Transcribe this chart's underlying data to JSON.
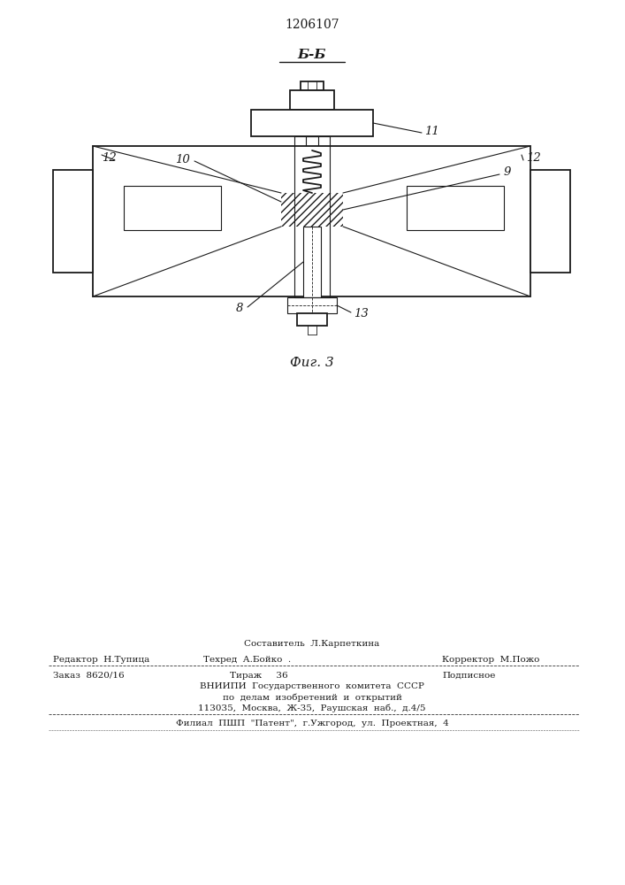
{
  "patent_number": "1206107",
  "section_label": "Б-Б",
  "fig_label": "Фиг. 3",
  "bg_color": "#ffffff",
  "line_color": "#1a1a1a",
  "footer": {
    "row0": "Составитель  Л.Карпеткина",
    "row1_left": "Редактор  Н.Тупица",
    "row1_mid": "Техред  А.Бойко  .",
    "row1_right": "Корректор  М.Пожо",
    "row2_left": "Заказ  8620/16",
    "row2_mid": "Тираж     36",
    "row2_right": "Подписное",
    "row3": "ВНИИПИ  Государственного  комитета  СССР",
    "row4": "по  делам  изобретений  и  открытий",
    "row5": "113035,  Москва,  Ж-35,  Раушская  наб.,  д.4/5",
    "row6": "Филиал  ПШП  \"Патент\",  г.Ужгород,  ул.  Проектная,  4"
  }
}
